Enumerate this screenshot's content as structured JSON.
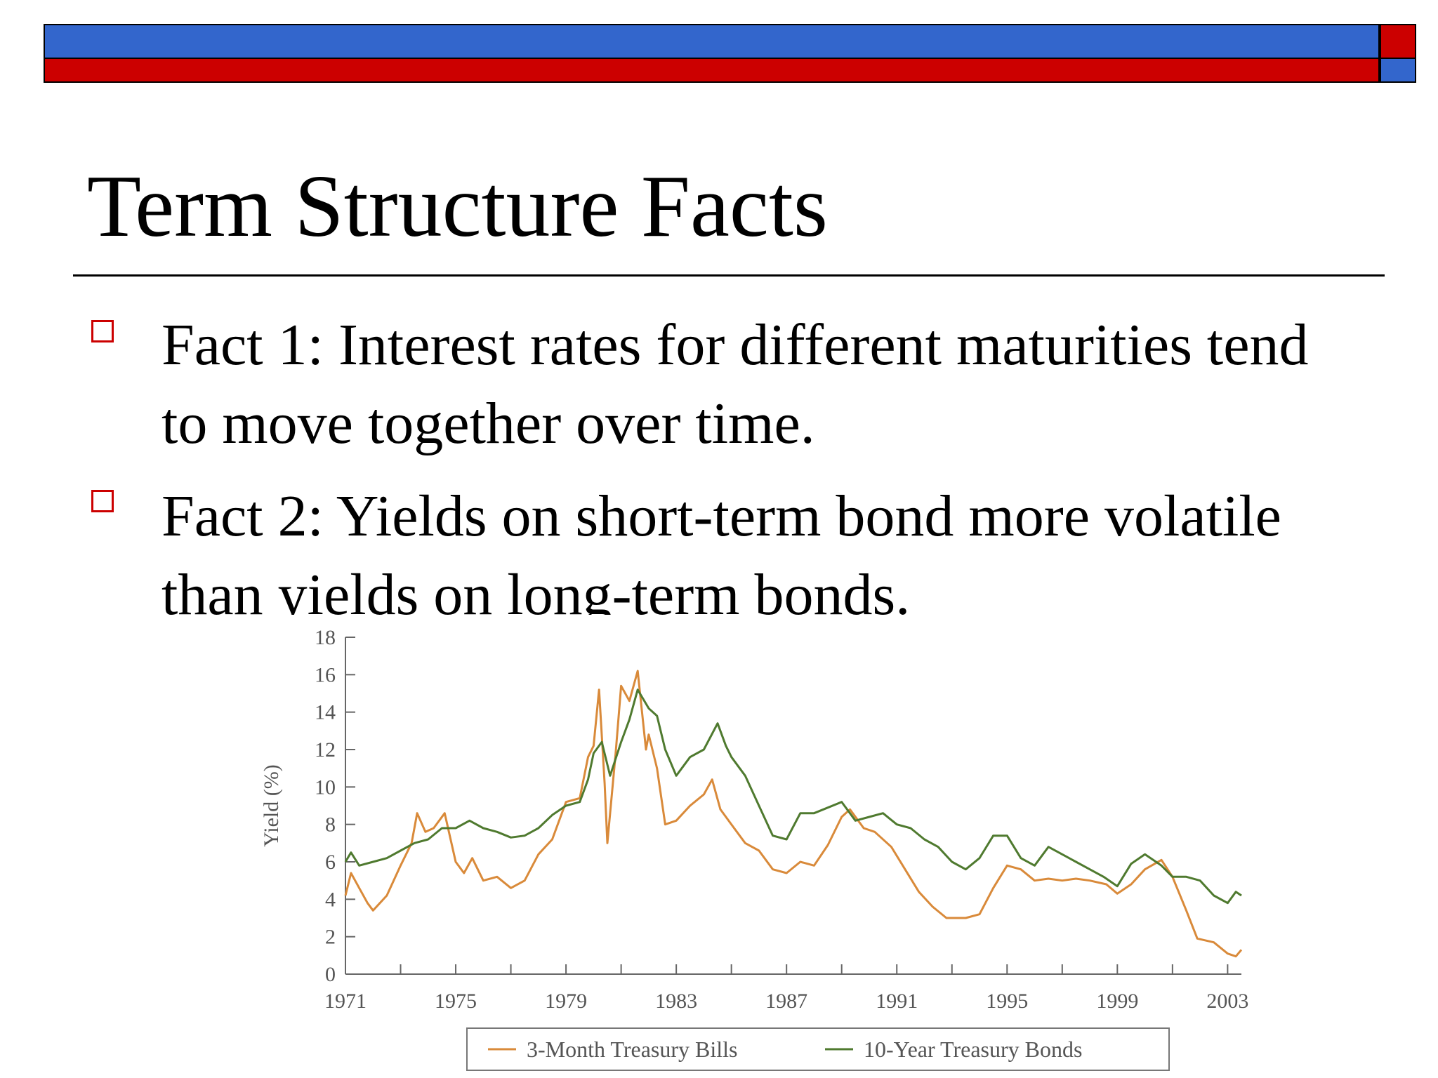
{
  "slide": {
    "title": "Term Structure Facts",
    "bullets": [
      "Fact 1: Interest rates for different maturities tend to move together over time.",
      "Fact 2: Yields on short-term bond more volatile than yields on long-term bonds."
    ]
  },
  "colors": {
    "accent_blue": "#3366cc",
    "accent_red": "#cc0000",
    "bill_series": "#d98a3a",
    "bond_series": "#4f7a2f"
  },
  "chart_data": {
    "type": "line",
    "ylabel": "Yield (%)",
    "xlabel": "",
    "xlim": [
      1971,
      2003.5
    ],
    "ylim": [
      0,
      18
    ],
    "xticks": [
      1971,
      1975,
      1979,
      1983,
      1987,
      1991,
      1995,
      1999,
      2003
    ],
    "yticks": [
      0,
      2,
      4,
      6,
      8,
      10,
      12,
      14,
      16,
      18
    ],
    "legend": "bottom",
    "series": [
      {
        "name": "3-Month Treasury Bills",
        "color": "#d98a3a",
        "points": [
          [
            1971.0,
            4.2
          ],
          [
            1971.2,
            5.4
          ],
          [
            1971.5,
            4.6
          ],
          [
            1971.8,
            3.8
          ],
          [
            1972.0,
            3.4
          ],
          [
            1972.5,
            4.2
          ],
          [
            1973.0,
            5.8
          ],
          [
            1973.4,
            7.0
          ],
          [
            1973.6,
            8.6
          ],
          [
            1973.9,
            7.6
          ],
          [
            1974.2,
            7.8
          ],
          [
            1974.6,
            8.6
          ],
          [
            1975.0,
            6.0
          ],
          [
            1975.3,
            5.4
          ],
          [
            1975.6,
            6.2
          ],
          [
            1976.0,
            5.0
          ],
          [
            1976.5,
            5.2
          ],
          [
            1977.0,
            4.6
          ],
          [
            1977.5,
            5.0
          ],
          [
            1978.0,
            6.4
          ],
          [
            1978.5,
            7.2
          ],
          [
            1979.0,
            9.2
          ],
          [
            1979.5,
            9.4
          ],
          [
            1979.8,
            11.6
          ],
          [
            1980.0,
            12.2
          ],
          [
            1980.2,
            15.2
          ],
          [
            1980.4,
            10.2
          ],
          [
            1980.5,
            7.0
          ],
          [
            1980.8,
            11.8
          ],
          [
            1981.0,
            15.4
          ],
          [
            1981.3,
            14.6
          ],
          [
            1981.6,
            16.2
          ],
          [
            1981.9,
            12.0
          ],
          [
            1982.0,
            12.8
          ],
          [
            1982.3,
            11.0
          ],
          [
            1982.6,
            8.0
          ],
          [
            1983.0,
            8.2
          ],
          [
            1983.5,
            9.0
          ],
          [
            1984.0,
            9.6
          ],
          [
            1984.3,
            10.4
          ],
          [
            1984.6,
            8.8
          ],
          [
            1985.0,
            8.0
          ],
          [
            1985.5,
            7.0
          ],
          [
            1986.0,
            6.6
          ],
          [
            1986.5,
            5.6
          ],
          [
            1987.0,
            5.4
          ],
          [
            1987.5,
            6.0
          ],
          [
            1988.0,
            5.8
          ],
          [
            1988.5,
            6.9
          ],
          [
            1989.0,
            8.4
          ],
          [
            1989.3,
            8.8
          ],
          [
            1989.8,
            7.8
          ],
          [
            1990.2,
            7.6
          ],
          [
            1990.8,
            6.8
          ],
          [
            1991.3,
            5.6
          ],
          [
            1991.8,
            4.4
          ],
          [
            1992.3,
            3.6
          ],
          [
            1992.8,
            3.0
          ],
          [
            1993.5,
            3.0
          ],
          [
            1994.0,
            3.2
          ],
          [
            1994.5,
            4.6
          ],
          [
            1995.0,
            5.8
          ],
          [
            1995.5,
            5.6
          ],
          [
            1996.0,
            5.0
          ],
          [
            1996.5,
            5.1
          ],
          [
            1997.0,
            5.0
          ],
          [
            1997.5,
            5.1
          ],
          [
            1998.0,
            5.0
          ],
          [
            1998.6,
            4.8
          ],
          [
            1999.0,
            4.3
          ],
          [
            1999.5,
            4.8
          ],
          [
            2000.0,
            5.6
          ],
          [
            2000.6,
            6.1
          ],
          [
            2001.0,
            5.2
          ],
          [
            2001.5,
            3.4
          ],
          [
            2001.9,
            1.9
          ],
          [
            2002.5,
            1.7
          ],
          [
            2003.0,
            1.1
          ],
          [
            2003.3,
            0.95
          ],
          [
            2003.5,
            1.3
          ]
        ]
      },
      {
        "name": "10-Year Treasury Bonds",
        "color": "#4f7a2f",
        "points": [
          [
            1971.0,
            6.0
          ],
          [
            1971.2,
            6.5
          ],
          [
            1971.5,
            5.8
          ],
          [
            1972.0,
            6.0
          ],
          [
            1972.5,
            6.2
          ],
          [
            1973.0,
            6.6
          ],
          [
            1973.5,
            7.0
          ],
          [
            1974.0,
            7.2
          ],
          [
            1974.5,
            7.8
          ],
          [
            1975.0,
            7.8
          ],
          [
            1975.5,
            8.2
          ],
          [
            1976.0,
            7.8
          ],
          [
            1976.5,
            7.6
          ],
          [
            1977.0,
            7.3
          ],
          [
            1977.5,
            7.4
          ],
          [
            1978.0,
            7.8
          ],
          [
            1978.5,
            8.5
          ],
          [
            1979.0,
            9.0
          ],
          [
            1979.5,
            9.2
          ],
          [
            1979.8,
            10.4
          ],
          [
            1980.0,
            11.8
          ],
          [
            1980.3,
            12.4
          ],
          [
            1980.6,
            10.6
          ],
          [
            1981.0,
            12.4
          ],
          [
            1981.3,
            13.6
          ],
          [
            1981.6,
            15.2
          ],
          [
            1982.0,
            14.2
          ],
          [
            1982.3,
            13.8
          ],
          [
            1982.6,
            12.0
          ],
          [
            1983.0,
            10.6
          ],
          [
            1983.5,
            11.6
          ],
          [
            1984.0,
            12.0
          ],
          [
            1984.5,
            13.4
          ],
          [
            1984.8,
            12.2
          ],
          [
            1985.0,
            11.6
          ],
          [
            1985.5,
            10.6
          ],
          [
            1986.0,
            9.0
          ],
          [
            1986.5,
            7.4
          ],
          [
            1987.0,
            7.2
          ],
          [
            1987.5,
            8.6
          ],
          [
            1988.0,
            8.6
          ],
          [
            1988.5,
            8.9
          ],
          [
            1989.0,
            9.2
          ],
          [
            1989.5,
            8.2
          ],
          [
            1990.0,
            8.4
          ],
          [
            1990.5,
            8.6
          ],
          [
            1991.0,
            8.0
          ],
          [
            1991.5,
            7.8
          ],
          [
            1992.0,
            7.2
          ],
          [
            1992.5,
            6.8
          ],
          [
            1993.0,
            6.0
          ],
          [
            1993.5,
            5.6
          ],
          [
            1994.0,
            6.2
          ],
          [
            1994.5,
            7.4
          ],
          [
            1995.0,
            7.4
          ],
          [
            1995.5,
            6.2
          ],
          [
            1996.0,
            5.8
          ],
          [
            1996.5,
            6.8
          ],
          [
            1997.0,
            6.4
          ],
          [
            1997.5,
            6.0
          ],
          [
            1998.0,
            5.6
          ],
          [
            1998.5,
            5.2
          ],
          [
            1999.0,
            4.7
          ],
          [
            1999.5,
            5.9
          ],
          [
            2000.0,
            6.4
          ],
          [
            2000.6,
            5.8
          ],
          [
            2001.0,
            5.2
          ],
          [
            2001.5,
            5.2
          ],
          [
            2002.0,
            5.0
          ],
          [
            2002.5,
            4.2
          ],
          [
            2003.0,
            3.8
          ],
          [
            2003.3,
            4.4
          ],
          [
            2003.5,
            4.2
          ]
        ]
      }
    ]
  }
}
